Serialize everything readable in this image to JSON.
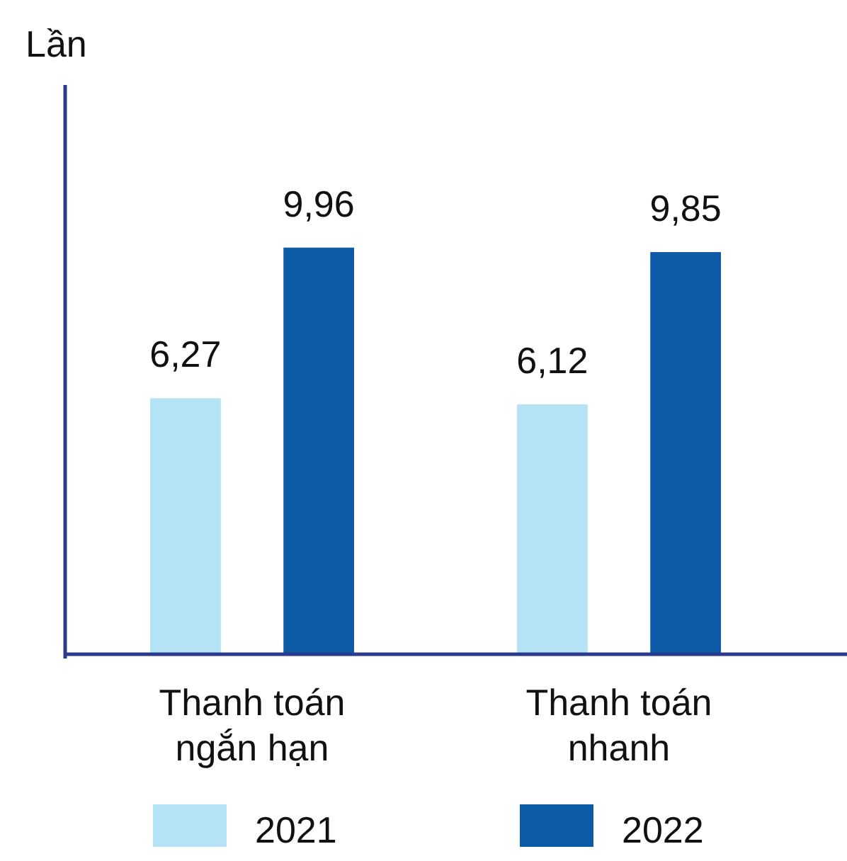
{
  "chart_data": {
    "type": "bar",
    "ylabel": "Lần",
    "categories": [
      "Thanh toán\nngắn hạn",
      "Thanh toán\nnhanh"
    ],
    "series": [
      {
        "name": "2021",
        "color": "#b3e3f4",
        "values": [
          6.27,
          6.12
        ],
        "value_labels": [
          "6,27",
          "6,12"
        ]
      },
      {
        "name": "2022",
        "color": "#0d5ba6",
        "values": [
          9.96,
          9.85
        ],
        "value_labels": [
          "9,96",
          "9,85"
        ]
      }
    ],
    "legend": "bottom"
  }
}
